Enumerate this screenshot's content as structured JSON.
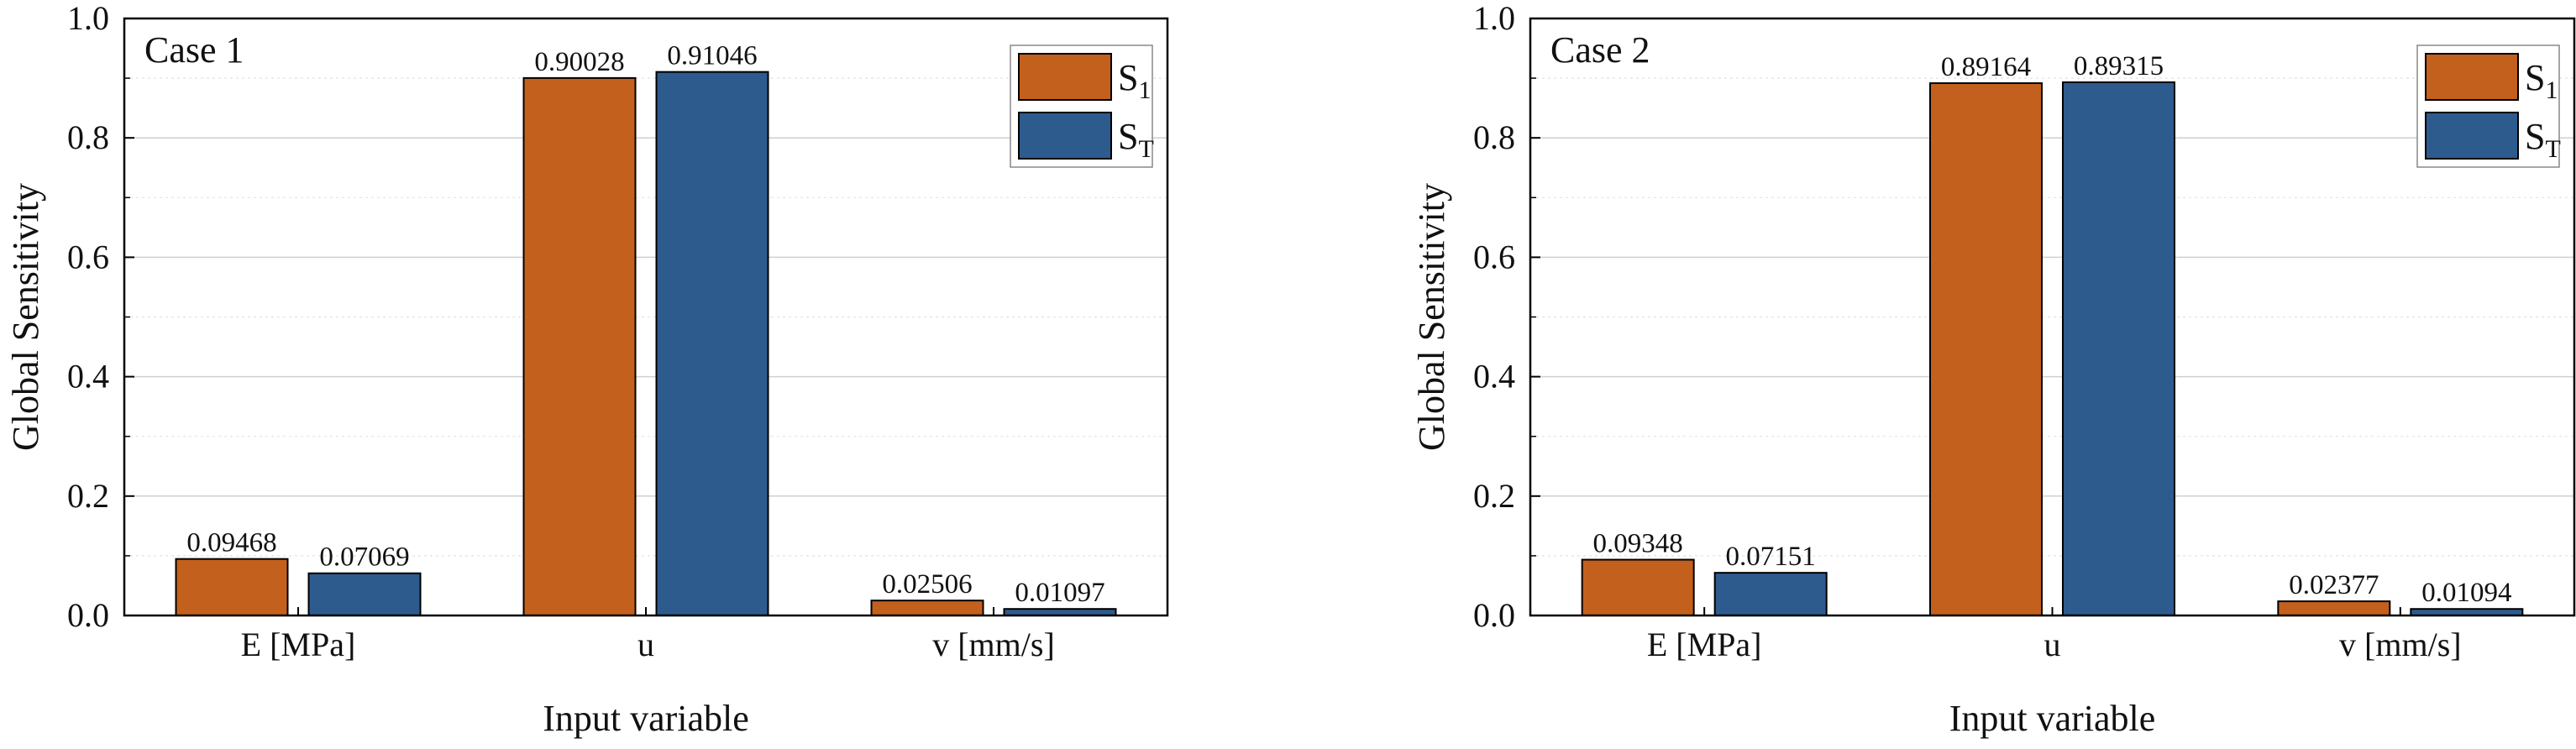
{
  "colors": {
    "s1": "#C3601E",
    "st": "#2E5B8E",
    "axis": "#000000",
    "grid": "#cfcfcf",
    "grid_minor": "#e2e2e2"
  },
  "chart_data": [
    {
      "type": "bar",
      "panel_label": "Case 1",
      "categories": [
        "E [MPa]",
        "u",
        "v [mm/s]"
      ],
      "series": [
        {
          "name": "S1",
          "main": "S",
          "sub": "1",
          "values": [
            0.09468,
            0.90028,
            0.02506
          ],
          "labels": [
            "0.09468",
            "0.90028",
            "0.02506"
          ]
        },
        {
          "name": "ST",
          "main": "S",
          "sub": "T",
          "values": [
            0.07069,
            0.91046,
            0.01097
          ],
          "labels": [
            "0.07069",
            "0.91046",
            "0.01097"
          ]
        }
      ],
      "xlabel": "Input variable",
      "ylabel": "Global Sensitivity",
      "ylim": [
        0,
        1
      ],
      "yticks": [
        "0.0",
        "0.2",
        "0.4",
        "0.6",
        "0.8",
        "1.0"
      ],
      "legend_position": "top-right",
      "grid": true
    },
    {
      "type": "bar",
      "panel_label": "Case 2",
      "categories": [
        "E [MPa]",
        "u",
        "v [mm/s]"
      ],
      "series": [
        {
          "name": "S1",
          "main": "S",
          "sub": "1",
          "values": [
            0.09348,
            0.89164,
            0.02377
          ],
          "labels": [
            "0.09348",
            "0.89164",
            "0.02377"
          ]
        },
        {
          "name": "ST",
          "main": "S",
          "sub": "T",
          "values": [
            0.07151,
            0.89315,
            0.01094
          ],
          "labels": [
            "0.07151",
            "0.89315",
            "0.01094"
          ]
        }
      ],
      "xlabel": "Input variable",
      "ylabel": "Global Sensitivity",
      "ylim": [
        0,
        1
      ],
      "yticks": [
        "0.0",
        "0.2",
        "0.4",
        "0.6",
        "0.8",
        "1.0"
      ],
      "legend_position": "top-right",
      "grid": true
    }
  ]
}
